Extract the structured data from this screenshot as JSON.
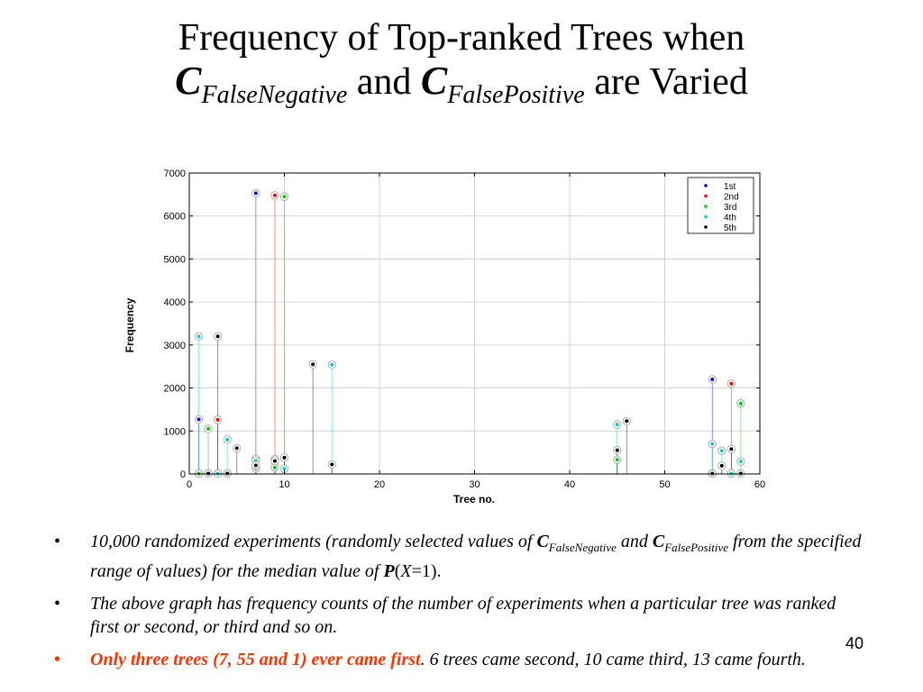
{
  "slide": {
    "title_line1": "Frequency of Top-ranked Trees when",
    "title_c1": "C",
    "title_sub1": "FalseNegative",
    "title_and": "and",
    "title_c2": "C",
    "title_sub2": "FalsePositive",
    "title_end": "are Varied",
    "page_number": "40"
  },
  "bullets": [
    {
      "dot": "•",
      "part1": "10,000 randomized experiments (randomly selected values of ",
      "c1": "C",
      "sub1": "FalseNegative",
      "part2": " and ",
      "c2": "C",
      "sub2": "FalsePositive",
      "part3": " from the specified range of values) for the median value of ",
      "p": "P",
      "part4": "(",
      "x": "X",
      "part5": "=1)."
    },
    {
      "dot": "•",
      "text": "The above graph has frequency counts of the number of experiments when a particular tree was ranked first or second, or third and so on."
    },
    {
      "dot": "•",
      "red_text": "Only three trees (7, 55 and 1) ever came first",
      "rest": ". 6 trees came second, 10 came third, 13 came fourth."
    }
  ],
  "chart_data": {
    "type": "scatter",
    "title": "",
    "xlabel": "Tree no.",
    "ylabel": "Frequency",
    "xlim": [
      0,
      60
    ],
    "ylim": [
      0,
      7000
    ],
    "xticks": [
      0,
      10,
      20,
      30,
      40,
      50,
      60
    ],
    "yticks": [
      0,
      1000,
      2000,
      3000,
      4000,
      5000,
      6000,
      7000
    ],
    "grid": true,
    "legend_position": "top-right",
    "stems": true,
    "series": [
      {
        "name": "1st",
        "color": "#0000ff",
        "points": [
          [
            1,
            1270
          ],
          [
            7,
            6530
          ],
          [
            55,
            2200
          ]
        ]
      },
      {
        "name": "2nd",
        "color": "#ff0000",
        "points": [
          [
            3,
            1260
          ],
          [
            7,
            130
          ],
          [
            9,
            6480
          ],
          [
            57,
            2100
          ],
          [
            1,
            10
          ],
          [
            55,
            10
          ]
        ]
      },
      {
        "name": "3rd",
        "color": "#00cc00",
        "points": [
          [
            2,
            1050
          ],
          [
            7,
            350
          ],
          [
            9,
            150
          ],
          [
            10,
            6450
          ],
          [
            45,
            330
          ],
          [
            58,
            1640
          ],
          [
            1,
            10
          ],
          [
            3,
            10
          ],
          [
            4,
            10
          ],
          [
            55,
            10
          ]
        ]
      },
      {
        "name": "4th",
        "color": "#00cccc",
        "points": [
          [
            1,
            3200
          ],
          [
            4,
            800
          ],
          [
            7,
            310
          ],
          [
            9,
            340
          ],
          [
            10,
            120
          ],
          [
            15,
            2540
          ],
          [
            45,
            1150
          ],
          [
            55,
            700
          ],
          [
            56,
            540
          ],
          [
            58,
            290
          ],
          [
            2,
            10
          ],
          [
            3,
            10
          ],
          [
            57,
            10
          ]
        ]
      },
      {
        "name": "5th",
        "color": "#000000",
        "points": [
          [
            3,
            3200
          ],
          [
            5,
            600
          ],
          [
            7,
            200
          ],
          [
            9,
            300
          ],
          [
            10,
            380
          ],
          [
            13,
            2550
          ],
          [
            15,
            220
          ],
          [
            45,
            550
          ],
          [
            46,
            1230
          ],
          [
            56,
            190
          ],
          [
            57,
            580
          ],
          [
            2,
            10
          ],
          [
            4,
            10
          ],
          [
            55,
            10
          ],
          [
            58,
            10
          ]
        ]
      }
    ]
  }
}
